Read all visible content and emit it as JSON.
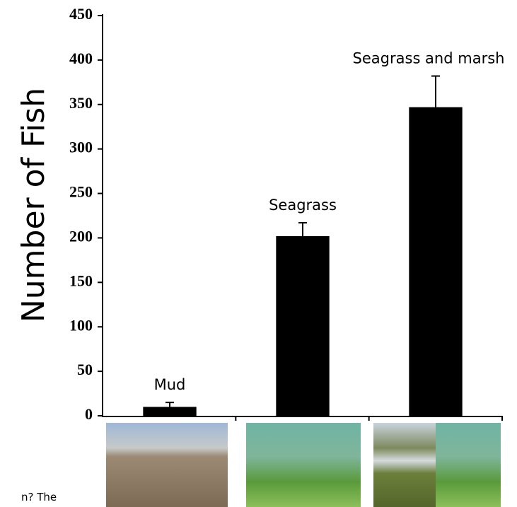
{
  "chart_data": {
    "type": "bar",
    "y_label": "Number of Fish",
    "categories": [
      "Mud",
      "Seagrass",
      "Seagrass and marsh"
    ],
    "values": [
      10,
      202,
      347
    ],
    "errors": [
      5,
      15,
      35
    ],
    "color": "#000000",
    "ylim": [
      0,
      450
    ],
    "yticks": [
      0,
      50,
      100,
      150,
      200,
      250,
      300,
      350,
      400,
      450
    ],
    "grid": false
  },
  "footer_text": "n?  The"
}
